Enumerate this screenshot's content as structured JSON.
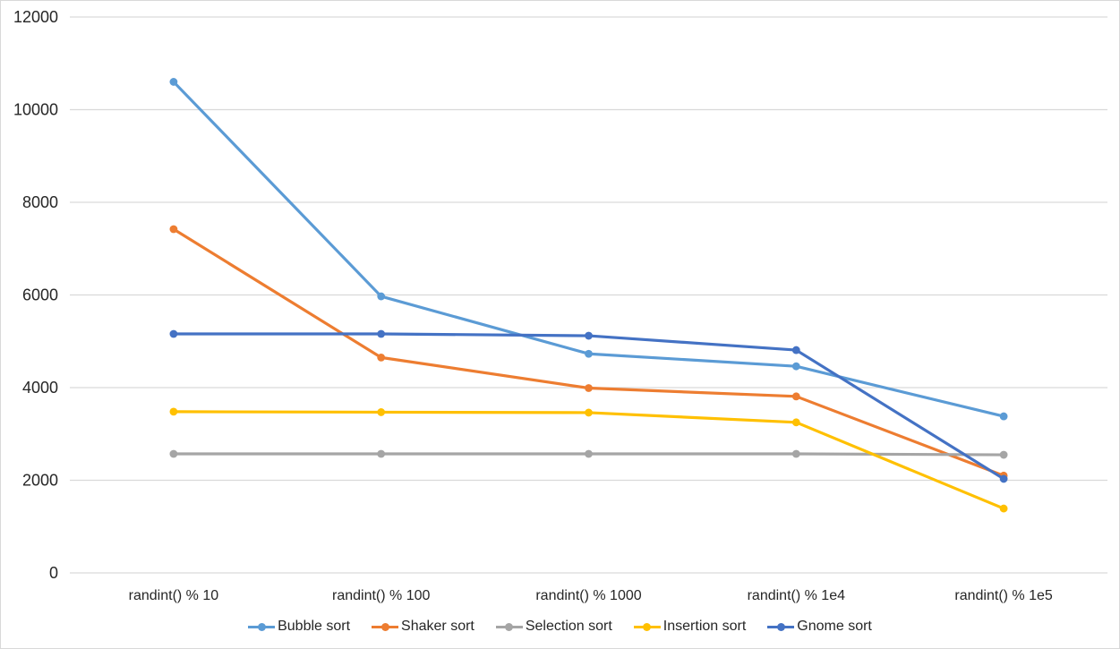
{
  "chart_data": {
    "type": "line",
    "title": "",
    "xlabel": "",
    "ylabel": "",
    "categories": [
      "randint() % 10",
      "randint() % 100",
      "randint() % 1000",
      "randint() % 1e4",
      "randint() % 1e5"
    ],
    "series": [
      {
        "name": "Bubble sort",
        "color": "#5B9BD5",
        "values": [
          10600,
          5970,
          4730,
          4460,
          3380
        ]
      },
      {
        "name": "Shaker sort",
        "color": "#ED7D31",
        "values": [
          7420,
          4650,
          3990,
          3810,
          2100
        ]
      },
      {
        "name": "Selection sort",
        "color": "#A5A5A5",
        "values": [
          2570,
          2570,
          2570,
          2570,
          2550
        ]
      },
      {
        "name": "Insertion sort",
        "color": "#FFC000",
        "values": [
          3480,
          3470,
          3460,
          3250,
          1390
        ]
      },
      {
        "name": "Gnome sort",
        "color": "#4472C4",
        "values": [
          5160,
          5160,
          5120,
          4810,
          2030
        ]
      }
    ],
    "ylim": [
      0,
      12000
    ],
    "yticks": [
      0,
      2000,
      4000,
      6000,
      8000,
      10000,
      12000
    ],
    "grid": true,
    "marker": "circle",
    "legend_position": "bottom"
  },
  "colors": {
    "background": "#FFFFFF",
    "gridline": "#D9D9D9",
    "axis_text": "#262626",
    "frame_border": "#D9D9D9"
  }
}
